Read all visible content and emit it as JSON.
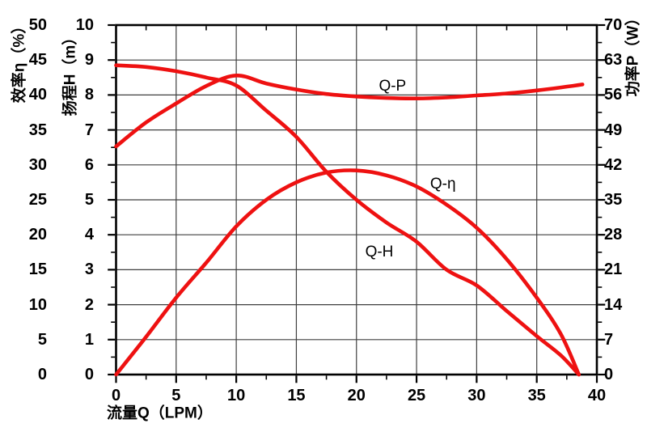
{
  "chart_data": {
    "type": "line",
    "title": "",
    "grid": true,
    "legend": "inline curve labels",
    "colors": {
      "curve": "#ee1111",
      "grid": "#3f3f3f",
      "axis": "#000000",
      "text": "#000000"
    },
    "axes": {
      "flow": {
        "label": "流量Q（LPM）",
        "min": 0,
        "max": 40,
        "major_ticks": [
          0,
          5,
          10,
          15,
          20,
          25,
          30,
          35,
          40
        ],
        "minor_step": 2.5
      },
      "efficiency": {
        "label": "效率η（%）",
        "min": 0,
        "max": 50,
        "major_ticks": [
          0,
          5,
          10,
          15,
          20,
          25,
          30,
          35,
          40,
          45,
          50
        ]
      },
      "head": {
        "label": "扬程H（m）",
        "min": 0,
        "max": 10,
        "major_ticks": [
          0,
          1,
          2,
          3,
          4,
          5,
          6,
          7,
          8,
          9,
          10
        ],
        "minor_step": 0.5
      },
      "power": {
        "label": "功率P（W）",
        "min": 0,
        "max": 70,
        "major_ticks": [
          0,
          7,
          14,
          21,
          28,
          35,
          42,
          49,
          56,
          63,
          70
        ],
        "minor_step": 3.5
      }
    },
    "series": [
      {
        "name": "Q-H",
        "axis": "head",
        "points": [
          [
            0,
            8.85
          ],
          [
            2.5,
            8.8
          ],
          [
            5,
            8.68
          ],
          [
            7.5,
            8.5
          ],
          [
            10,
            8.27
          ],
          [
            12.5,
            7.55
          ],
          [
            15,
            6.8
          ],
          [
            17.5,
            5.8
          ],
          [
            20,
            5.0
          ],
          [
            22.5,
            4.35
          ],
          [
            25,
            3.8
          ],
          [
            27.5,
            3.0
          ],
          [
            30,
            2.55
          ],
          [
            32.5,
            1.82
          ],
          [
            35,
            1.1
          ],
          [
            37,
            0.55
          ],
          [
            38.5,
            0
          ]
        ]
      },
      {
        "name": "Q-η",
        "axis": "efficiency",
        "points": [
          [
            0,
            0
          ],
          [
            2.5,
            5.4
          ],
          [
            5,
            11.0
          ],
          [
            7.5,
            16.0
          ],
          [
            10,
            21.2
          ],
          [
            12.5,
            25.0
          ],
          [
            15,
            27.5
          ],
          [
            17.5,
            28.9
          ],
          [
            20,
            29.2
          ],
          [
            22.5,
            28.5
          ],
          [
            25,
            26.9
          ],
          [
            27.5,
            24.3
          ],
          [
            30,
            21.0
          ],
          [
            32.5,
            16.5
          ],
          [
            35,
            11.0
          ],
          [
            37,
            5.8
          ],
          [
            38.5,
            0
          ]
        ]
      },
      {
        "name": "Q-P",
        "axis": "power",
        "points": [
          [
            0,
            45.7
          ],
          [
            2.5,
            50.5
          ],
          [
            5,
            54.3
          ],
          [
            7.5,
            57.8
          ],
          [
            10,
            59.9
          ],
          [
            12.5,
            58.3
          ],
          [
            15,
            57.1
          ],
          [
            17.5,
            56.2
          ],
          [
            20,
            55.7
          ],
          [
            22.5,
            55.4
          ],
          [
            25,
            55.3
          ],
          [
            27.5,
            55.5
          ],
          [
            30,
            55.9
          ],
          [
            32.5,
            56.3
          ],
          [
            35,
            56.9
          ],
          [
            37,
            57.5
          ],
          [
            38.8,
            58.1
          ]
        ]
      }
    ],
    "annotations": [
      {
        "text": "Q-P",
        "axis": "power",
        "q": 23.0,
        "value": 57.7
      },
      {
        "text": "Q-η",
        "axis": "efficiency",
        "q": 27.2,
        "value": 27.2
      },
      {
        "text": "Q-H",
        "axis": "head",
        "q": 21.9,
        "value": 3.5
      }
    ]
  }
}
